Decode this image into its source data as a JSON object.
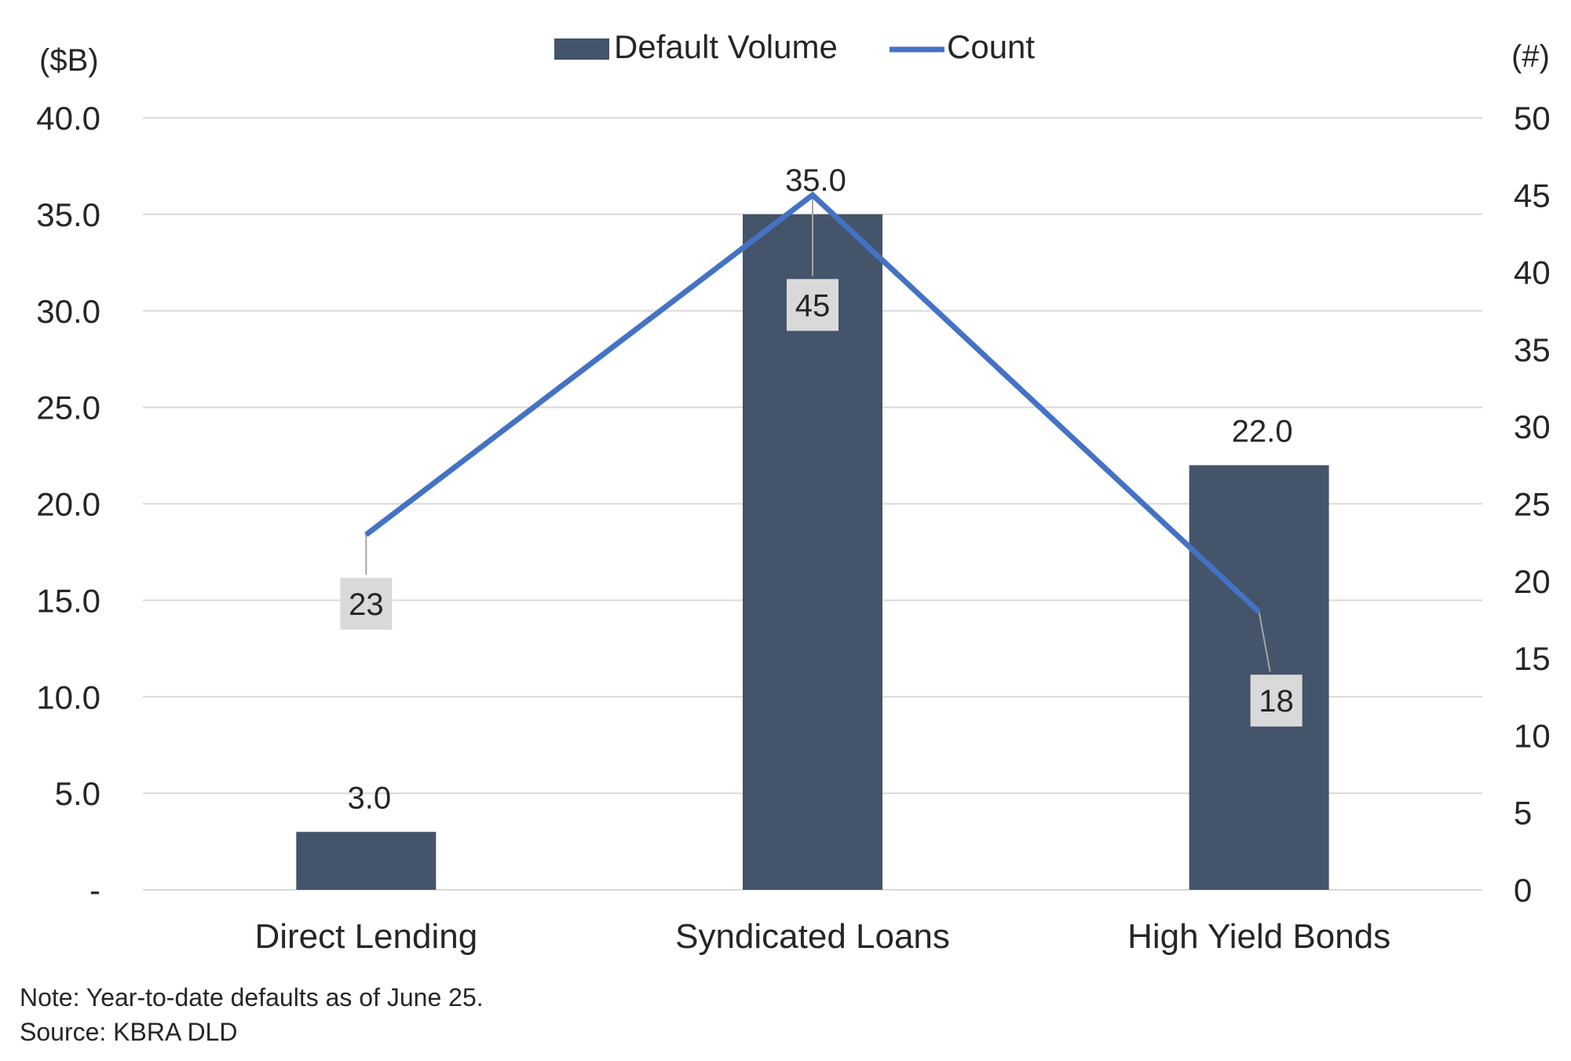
{
  "chart_data": {
    "type": "bar",
    "categories": [
      "Direct Lending",
      "Syndicated Loans",
      "High Yield Bonds"
    ],
    "series": [
      {
        "name": "Default Volume",
        "type": "bar",
        "axis": "left",
        "color": "#44546a",
        "values": [
          3.0,
          35.0,
          22.0
        ],
        "labels": [
          "3.0",
          "35.0",
          "22.0"
        ]
      },
      {
        "name": "Count",
        "type": "line",
        "axis": "right",
        "color": "#4472c4",
        "values": [
          23,
          45,
          18
        ],
        "labels": [
          "23",
          "45",
          "18"
        ]
      }
    ],
    "y_left": {
      "unit": "($B)",
      "range": [
        0,
        40
      ],
      "ticks": [
        0,
        5,
        10,
        15,
        20,
        25,
        30,
        35,
        40
      ],
      "tick_labels": [
        "-",
        "5.0",
        "10.0",
        "15.0",
        "20.0",
        "25.0",
        "30.0",
        "35.0",
        "40.0"
      ]
    },
    "y_right": {
      "unit": "(#)",
      "range": [
        0,
        50
      ],
      "ticks": [
        0,
        5,
        10,
        15,
        20,
        25,
        30,
        35,
        40,
        45,
        50
      ],
      "tick_labels": [
        "0",
        "5",
        "10",
        "15",
        "20",
        "25",
        "30",
        "35",
        "40",
        "45",
        "50"
      ]
    },
    "grid": true,
    "legend": "top-center",
    "gridline_color": "#d9d9d9",
    "label_box_color": "#d9d9d9"
  },
  "notes": {
    "note": "Note: Year-to-date defaults as of June 25.",
    "source": "Source: KBRA DLD"
  }
}
